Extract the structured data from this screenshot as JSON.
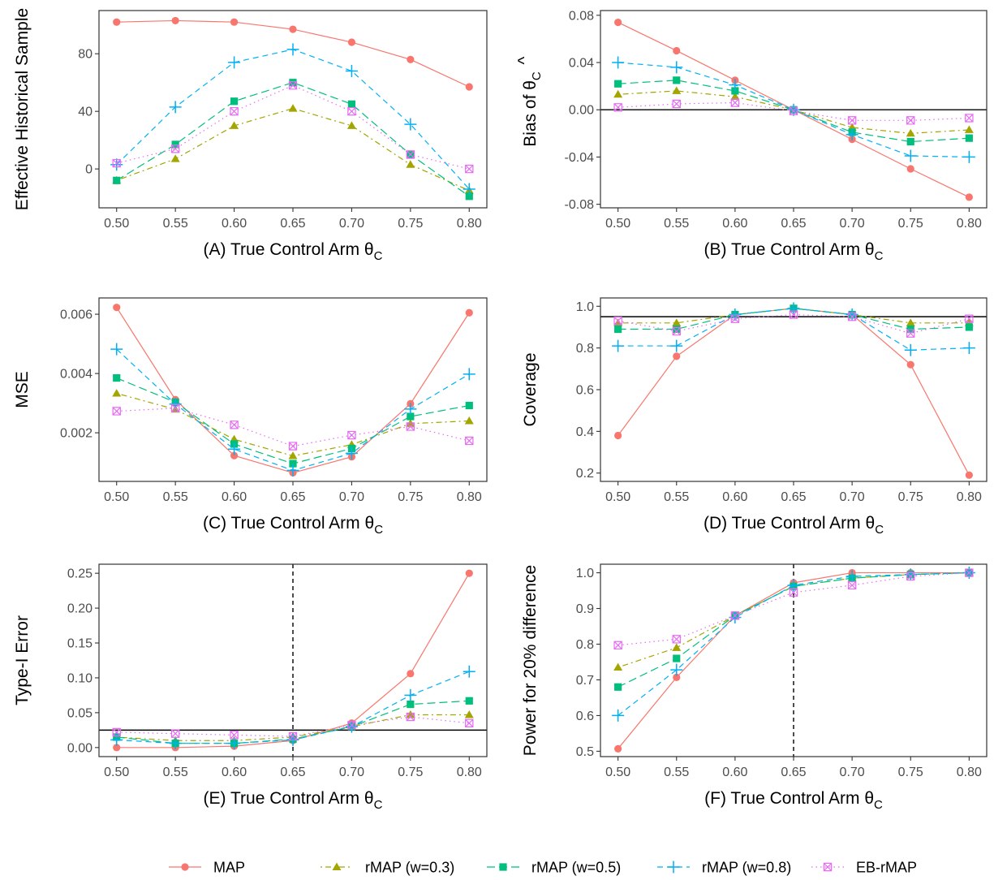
{
  "chart_data": {
    "type": "line",
    "x": [
      0.5,
      0.55,
      0.6,
      0.65,
      0.7,
      0.75,
      0.8
    ],
    "x_tick_labels": [
      "0.50",
      "0.55",
      "0.60",
      "0.65",
      "0.70",
      "0.75",
      "0.80"
    ],
    "xlim": [
      0.485,
      0.815
    ],
    "legend": {
      "position": "bottom",
      "entries": [
        {
          "name": "MAP",
          "color": "#F8766D",
          "linestyle": "solid",
          "marker": "circle"
        },
        {
          "name": "rMAP (w=0.3)",
          "color": "#A3A500",
          "linestyle": "dotdash",
          "marker": "triangle"
        },
        {
          "name": "rMAP (w=0.5)",
          "color": "#00BF7D",
          "linestyle": "longdash",
          "marker": "square"
        },
        {
          "name": "rMAP (w=0.8)",
          "color": "#00B0F6",
          "linestyle": "dashed",
          "marker": "plus"
        },
        {
          "name": "EB-rMAP",
          "color": "#E76BF3",
          "linestyle": "dotted",
          "marker": "boxcross"
        }
      ]
    },
    "panels": [
      {
        "id": "A",
        "xlabel": {
          "main": "(A) True Control Arm θ",
          "sub": "C"
        },
        "ylabel": {
          "main": "Effective Historical Sample",
          "sub": ""
        },
        "ylim": [
          -27,
          110
        ],
        "yticks": [
          0,
          40,
          80
        ],
        "ytick_labels": [
          "0",
          "40",
          "80"
        ],
        "grid": false,
        "series": [
          {
            "name": "MAP",
            "values": [
              102,
              103,
              102,
              97,
              88,
              76,
              57
            ]
          },
          {
            "name": "rMAP (w=0.3)",
            "values": [
              -8,
              7,
              30,
              42,
              30,
              3,
              -15
            ]
          },
          {
            "name": "rMAP (w=0.5)",
            "values": [
              -8,
              17,
              47,
              60,
              45,
              10,
              -19
            ]
          },
          {
            "name": "rMAP (w=0.8)",
            "values": [
              3,
              43,
              74,
              83,
              68,
              31,
              -14
            ]
          },
          {
            "name": "EB-rMAP",
            "values": [
              4,
              14,
              40,
              58,
              40,
              10,
              0
            ]
          }
        ]
      },
      {
        "id": "B",
        "xlabel": {
          "main": "(B) True Control Arm θ",
          "sub": "C"
        },
        "ylabel": {
          "main": "Bias of θ",
          "sub": "C",
          "hat": "^"
        },
        "ylim": [
          -0.083,
          0.084
        ],
        "yticks": [
          -0.08,
          -0.04,
          0.0,
          0.04,
          0.08
        ],
        "ytick_labels": [
          "-0.08",
          "-0.04",
          "0.00",
          "0.04",
          "0.08"
        ],
        "hline": 0,
        "grid": false,
        "series": [
          {
            "name": "MAP",
            "values": [
              0.074,
              0.05,
              0.025,
              0.0,
              -0.025,
              -0.05,
              -0.074
            ]
          },
          {
            "name": "rMAP (w=0.3)",
            "values": [
              0.013,
              0.016,
              0.011,
              0.0,
              -0.015,
              -0.02,
              -0.017
            ]
          },
          {
            "name": "rMAP (w=0.5)",
            "values": [
              0.022,
              0.025,
              0.016,
              0.0,
              -0.019,
              -0.027,
              -0.024
            ]
          },
          {
            "name": "rMAP (w=0.8)",
            "values": [
              0.04,
              0.036,
              0.021,
              0.0,
              -0.021,
              -0.039,
              -0.04
            ]
          },
          {
            "name": "EB-rMAP",
            "values": [
              0.002,
              0.005,
              0.006,
              -0.001,
              -0.009,
              -0.009,
              -0.007
            ]
          }
        ]
      },
      {
        "id": "C",
        "xlabel": {
          "main": "(C) True Control Arm θ",
          "sub": "C"
        },
        "ylabel": {
          "main": "MSE",
          "sub": ""
        },
        "ylim": [
          0.00036,
          0.00655
        ],
        "yticks": [
          0.002,
          0.004,
          0.006
        ],
        "ytick_labels": [
          "0.002",
          "0.004",
          "0.006"
        ],
        "grid": false,
        "series": [
          {
            "name": "MAP",
            "values": [
              0.00623,
              0.00312,
              0.00123,
              0.00065,
              0.00119,
              0.00298,
              0.00605
            ]
          },
          {
            "name": "rMAP (w=0.3)",
            "values": [
              0.00333,
              0.00279,
              0.00178,
              0.00122,
              0.0016,
              0.00231,
              0.0024
            ]
          },
          {
            "name": "rMAP (w=0.5)",
            "values": [
              0.00385,
              0.00303,
              0.00162,
              0.00096,
              0.00147,
              0.00255,
              0.00292
            ]
          },
          {
            "name": "rMAP (w=0.8)",
            "values": [
              0.00482,
              0.00297,
              0.00145,
              0.00073,
              0.00131,
              0.0028,
              0.00398
            ]
          },
          {
            "name": "EB-rMAP",
            "values": [
              0.00273,
              0.00283,
              0.00227,
              0.00155,
              0.00192,
              0.00221,
              0.00173
            ]
          }
        ]
      },
      {
        "id": "D",
        "xlabel": {
          "main": "(D) True Control Arm θ",
          "sub": "C"
        },
        "ylabel": {
          "main": "Coverage",
          "sub": ""
        },
        "ylim": [
          0.16,
          1.04
        ],
        "yticks": [
          0.2,
          0.4,
          0.6,
          0.8,
          1.0
        ],
        "ytick_labels": [
          "0.2",
          "0.4",
          "0.6",
          "0.8",
          "1.0"
        ],
        "hline": 0.95,
        "grid": false,
        "series": [
          {
            "name": "MAP",
            "values": [
              0.38,
              0.76,
              0.96,
              0.99,
              0.96,
              0.72,
              0.19
            ]
          },
          {
            "name": "rMAP (w=0.3)",
            "values": [
              0.92,
              0.92,
              0.96,
              0.99,
              0.96,
              0.92,
              0.92
            ]
          },
          {
            "name": "rMAP (w=0.5)",
            "values": [
              0.89,
              0.89,
              0.96,
              0.99,
              0.96,
              0.89,
              0.9
            ]
          },
          {
            "name": "rMAP (w=0.8)",
            "values": [
              0.81,
              0.81,
              0.96,
              0.99,
              0.96,
              0.79,
              0.8
            ]
          },
          {
            "name": "EB-rMAP",
            "values": [
              0.93,
              0.88,
              0.94,
              0.96,
              0.95,
              0.87,
              0.94
            ]
          }
        ]
      },
      {
        "id": "E",
        "xlabel": {
          "main": "(E) True Control Arm θ",
          "sub": "C"
        },
        "ylabel": {
          "main": "Type-I Error",
          "sub": ""
        },
        "ylim": [
          -0.013,
          0.263
        ],
        "yticks": [
          0.0,
          0.05,
          0.1,
          0.15,
          0.2,
          0.25
        ],
        "ytick_labels": [
          "0.00",
          "0.05",
          "0.10",
          "0.15",
          "0.20",
          "0.25"
        ],
        "hline": 0.025,
        "vline": 0.65,
        "grid": false,
        "series": [
          {
            "name": "MAP",
            "values": [
              0.0,
              0.0,
              0.002,
              0.01,
              0.035,
              0.106,
              0.25
            ]
          },
          {
            "name": "rMAP (w=0.3)",
            "values": [
              0.015,
              0.01,
              0.01,
              0.015,
              0.03,
              0.047,
              0.047
            ]
          },
          {
            "name": "rMAP (w=0.5)",
            "values": [
              0.015,
              0.006,
              0.006,
              0.012,
              0.03,
              0.062,
              0.067
            ]
          },
          {
            "name": "rMAP (w=0.8)",
            "values": [
              0.011,
              0.006,
              0.006,
              0.011,
              0.03,
              0.075,
              0.109
            ]
          },
          {
            "name": "EB-rMAP",
            "values": [
              0.022,
              0.02,
              0.018,
              0.016,
              0.032,
              0.044,
              0.035
            ]
          }
        ]
      },
      {
        "id": "F",
        "xlabel": {
          "main": "(F) True Control Arm θ",
          "sub": "C"
        },
        "ylabel": {
          "main": "Power for 20% difference",
          "sub": ""
        },
        "ylim": [
          0.485,
          1.024
        ],
        "yticks": [
          0.5,
          0.6,
          0.7,
          0.8,
          0.9,
          1.0
        ],
        "ytick_labels": [
          "0.5",
          "0.6",
          "0.7",
          "0.8",
          "0.9",
          "1.0"
        ],
        "vline": 0.65,
        "grid": false,
        "series": [
          {
            "name": "MAP",
            "values": [
              0.507,
              0.707,
              0.88,
              0.972,
              1.0,
              1.0,
              1.0
            ]
          },
          {
            "name": "rMAP (w=0.3)",
            "values": [
              0.735,
              0.79,
              0.88,
              0.962,
              0.985,
              0.995,
              1.0
            ]
          },
          {
            "name": "rMAP (w=0.5)",
            "values": [
              0.68,
              0.76,
              0.88,
              0.962,
              0.985,
              0.995,
              1.0
            ]
          },
          {
            "name": "rMAP (w=0.8)",
            "values": [
              0.6,
              0.728,
              0.875,
              0.965,
              0.99,
              0.995,
              1.0
            ]
          },
          {
            "name": "EB-rMAP",
            "values": [
              0.797,
              0.814,
              0.88,
              0.945,
              0.965,
              0.99,
              1.0
            ]
          }
        ]
      }
    ]
  }
}
